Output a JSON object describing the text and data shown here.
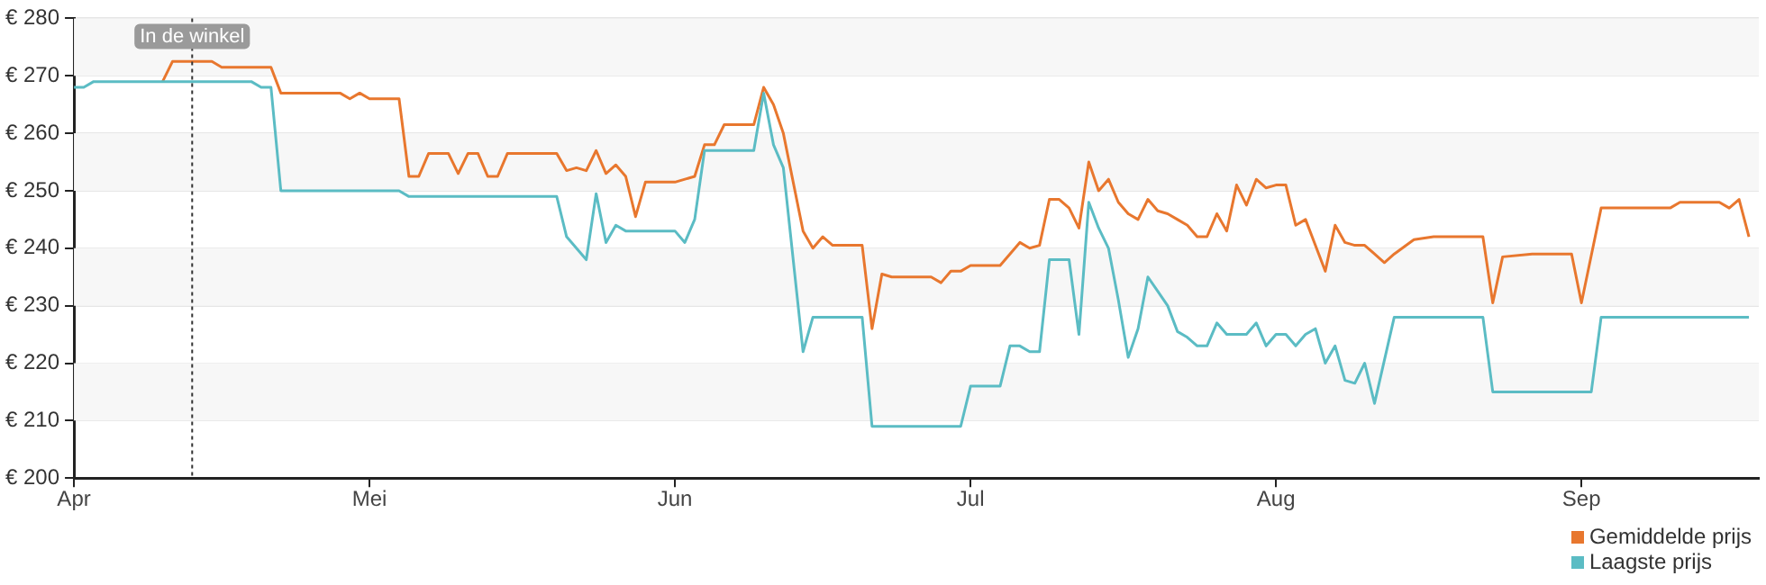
{
  "chart_data": {
    "type": "line",
    "legend": "bottom right",
    "grid": "y",
    "marker": "none",
    "line_style": "solid",
    "xlim": [
      "--04-01",
      "--09-19"
    ],
    "xticks": [
      {
        "value": "--04-01",
        "label": "Apr"
      },
      {
        "value": "--05-01",
        "label": "Mei"
      },
      {
        "value": "--06-01",
        "label": "Jun"
      },
      {
        "value": "--07-01",
        "label": "Jul"
      },
      {
        "value": "--08-01",
        "label": "Aug"
      },
      {
        "value": "--09-01",
        "label": "Sep"
      }
    ],
    "ylim": [
      200,
      280
    ],
    "yticks": [
      {
        "value": 200,
        "label": "€ 200"
      },
      {
        "value": 210,
        "label": "€ 210"
      },
      {
        "value": 220,
        "label": "€ 220"
      },
      {
        "value": 230,
        "label": "€ 230"
      },
      {
        "value": 240,
        "label": "€ 240"
      },
      {
        "value": 250,
        "label": "€ 250"
      },
      {
        "value": 260,
        "label": "€ 260"
      },
      {
        "value": 270,
        "label": "€ 270"
      },
      {
        "value": 280,
        "label": "€ 280"
      }
    ],
    "ref_lines": [
      {
        "axis": "x",
        "value": "--04-13",
        "label": "In de winkel",
        "color": "#333333",
        "line_style": "dotted"
      }
    ],
    "series": [
      {
        "name": "Gemiddelde prijs",
        "color": "#e8772e",
        "x": [
          "--04-10",
          "--04-11",
          "--04-15",
          "--04-16",
          "--04-21",
          "--04-22",
          "--04-28",
          "--04-29",
          "--04-30",
          "--05-01",
          "--05-04",
          "--05-05",
          "--05-06",
          "--05-07",
          "--05-09",
          "--05-10",
          "--05-11",
          "--05-12",
          "--05-13",
          "--05-14",
          "--05-15",
          "--05-20",
          "--05-21",
          "--05-22",
          "--05-23",
          "--05-24",
          "--05-25",
          "--05-26",
          "--05-27",
          "--05-28",
          "--05-29",
          "--06-01",
          "--06-03",
          "--06-04",
          "--06-05",
          "--06-06",
          "--06-09",
          "--06-10",
          "--06-11",
          "--06-12",
          "--06-14",
          "--06-15",
          "--06-16",
          "--06-17",
          "--06-20",
          "--06-21",
          "--06-22",
          "--06-23",
          "--06-27",
          "--06-28",
          "--06-29",
          "--06-30",
          "--07-01",
          "--07-04",
          "--07-05",
          "--07-06",
          "--07-07",
          "--07-08",
          "--07-09",
          "--07-10",
          "--07-11",
          "--07-12",
          "--07-13",
          "--07-14",
          "--07-15",
          "--07-16",
          "--07-17",
          "--07-18",
          "--07-19",
          "--07-20",
          "--07-21",
          "--07-22",
          "--07-23",
          "--07-24",
          "--07-25",
          "--07-26",
          "--07-27",
          "--07-28",
          "--07-29",
          "--07-30",
          "--07-31",
          "--08-01",
          "--08-02",
          "--08-03",
          "--08-04",
          "--08-06",
          "--08-07",
          "--08-08",
          "--08-09",
          "--08-10",
          "--08-11",
          "--08-12",
          "--08-13",
          "--08-15",
          "--08-17",
          "--08-22",
          "--08-23",
          "--08-24",
          "--08-27",
          "--08-31",
          "--09-01",
          "--09-03",
          "--09-10",
          "--09-11",
          "--09-15",
          "--09-16",
          "--09-17",
          "--09-18"
        ],
        "values": [
          269,
          272.5,
          272.5,
          271.5,
          271.5,
          267,
          267,
          266,
          267,
          266,
          266,
          252.5,
          252.5,
          256.5,
          256.5,
          253,
          256.5,
          256.5,
          252.5,
          252.5,
          256.5,
          256.5,
          253.5,
          254,
          253.5,
          257,
          253,
          254.5,
          252.5,
          245.5,
          251.5,
          251.5,
          252.5,
          258,
          258,
          261.5,
          261.5,
          268,
          265,
          260,
          243,
          240,
          242,
          240.5,
          240.5,
          226,
          235.5,
          235,
          235,
          234,
          236,
          236,
          237,
          237,
          239,
          241,
          240,
          240.5,
          248.5,
          248.5,
          247,
          243.5,
          255,
          250,
          252,
          248,
          246,
          245,
          248.5,
          246.5,
          246,
          245,
          244,
          242,
          242,
          246,
          243,
          251,
          247.5,
          252,
          250.5,
          251,
          251,
          244,
          245,
          236,
          244,
          241,
          240.5,
          240.5,
          239,
          237.5,
          239,
          241.5,
          242,
          242,
          230.5,
          238.5,
          239,
          239,
          230.5,
          247,
          247,
          248,
          248,
          247,
          248.5,
          242
        ]
      },
      {
        "name": "Laagste prijs",
        "color": "#5bbcc4",
        "x": [
          "--04-01",
          "--04-02",
          "--04-03",
          "--04-19",
          "--04-20",
          "--04-21",
          "--04-22",
          "--05-04",
          "--05-05",
          "--05-20",
          "--05-21",
          "--05-23",
          "--05-24",
          "--05-25",
          "--05-26",
          "--05-27",
          "--06-01",
          "--06-02",
          "--06-03",
          "--06-04",
          "--06-09",
          "--06-10",
          "--06-11",
          "--06-12",
          "--06-14",
          "--06-15",
          "--06-20",
          "--06-21",
          "--06-30",
          "--07-01",
          "--07-04",
          "--07-05",
          "--07-06",
          "--07-07",
          "--07-08",
          "--07-09",
          "--07-11",
          "--07-12",
          "--07-13",
          "--07-14",
          "--07-15",
          "--07-16",
          "--07-17",
          "--07-18",
          "--07-19",
          "--07-20",
          "--07-21",
          "--07-22",
          "--07-23",
          "--07-24",
          "--07-25",
          "--07-26",
          "--07-27",
          "--07-29",
          "--07-30",
          "--07-31",
          "--08-01",
          "--08-02",
          "--08-03",
          "--08-04",
          "--08-05",
          "--08-06",
          "--08-07",
          "--08-08",
          "--08-09",
          "--08-10",
          "--08-11",
          "--08-13",
          "--08-22",
          "--08-23",
          "--09-02",
          "--09-03",
          "--09-18"
        ],
        "values": [
          268,
          268,
          269,
          269,
          268,
          268,
          250,
          250,
          249,
          249,
          242,
          238,
          249.5,
          241,
          244,
          243,
          243,
          241,
          245,
          257,
          257,
          267,
          258,
          254,
          222,
          228,
          228,
          209,
          209,
          216,
          216,
          223,
          223,
          222,
          222,
          238,
          238,
          225,
          248,
          243.5,
          240,
          231,
          221,
          226,
          235,
          232.5,
          230,
          225.5,
          224.5,
          223,
          223,
          227,
          225,
          225,
          227,
          223,
          225,
          225,
          223,
          225,
          226,
          220,
          223,
          217,
          216.5,
          220,
          213,
          228,
          228,
          215,
          215,
          228,
          228
        ]
      }
    ]
  }
}
